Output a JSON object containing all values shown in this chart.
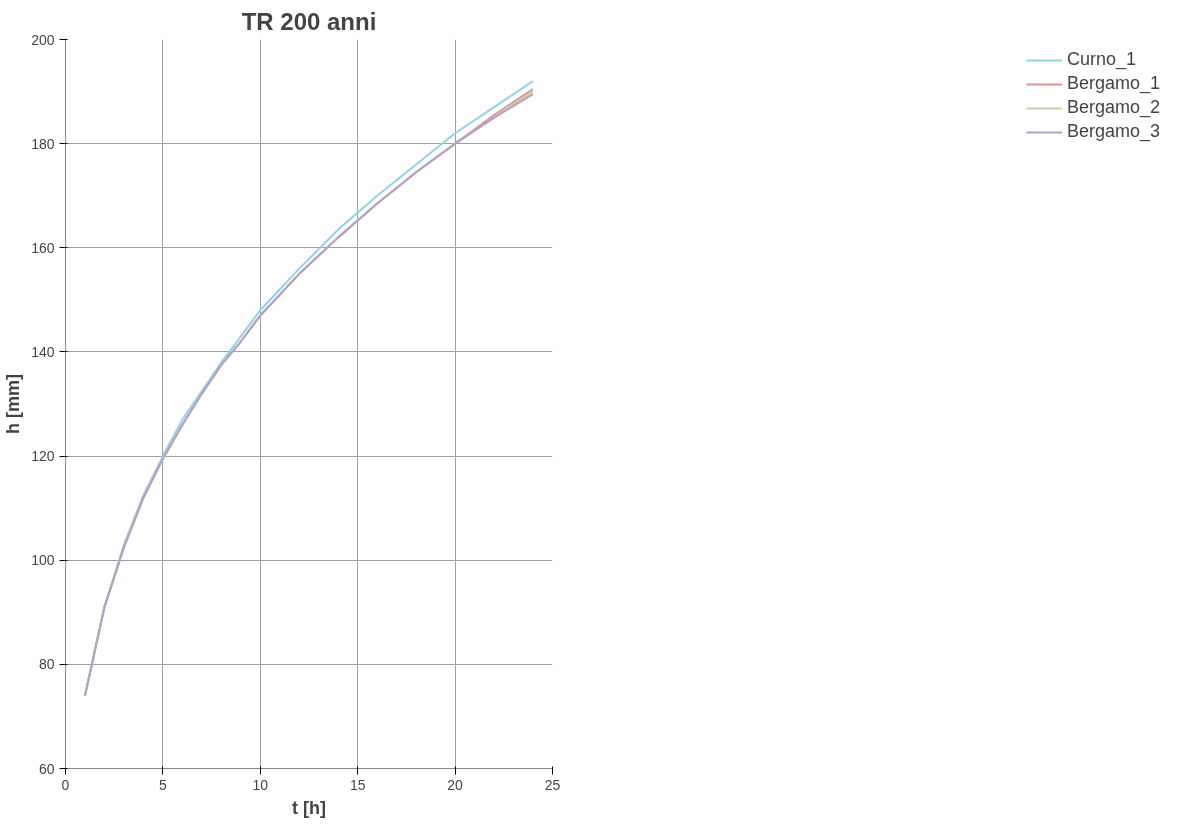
{
  "chart_data": {
    "type": "line",
    "title": "TR 200 anni",
    "xlabel": "t [h]",
    "ylabel": "h [mm]",
    "x": [
      1,
      2,
      3,
      4,
      5,
      6,
      7,
      8,
      9,
      10,
      12,
      14,
      16,
      18,
      20,
      22,
      24
    ],
    "series": [
      {
        "name": "Curno_1",
        "color": "#8fd3ea",
        "values": [
          74,
          91,
          103,
          112.5,
          120,
          127,
          132.5,
          138,
          143,
          148,
          156,
          163.5,
          170,
          176,
          182,
          187,
          192
        ]
      },
      {
        "name": "Bergamo_1",
        "color": "#d99694",
        "values": [
          74,
          91,
          102.5,
          112,
          119.5,
          126,
          132,
          137.5,
          142,
          147,
          155,
          162,
          168.5,
          174.5,
          180,
          185.5,
          190.5
        ]
      },
      {
        "name": "Bergamo_2",
        "color": "#c3d69b",
        "values": [
          74,
          91,
          102.5,
          112,
          119.5,
          126,
          132,
          137.5,
          142,
          147,
          155,
          162,
          168.5,
          174.5,
          180,
          185,
          190
        ]
      },
      {
        "name": "Bergamo_3",
        "color": "#b3a2c7",
        "values": [
          74,
          91,
          102.5,
          112,
          119.5,
          126,
          132,
          137.5,
          142,
          147,
          155,
          162,
          168.5,
          174.5,
          180,
          185,
          189.5
        ]
      }
    ],
    "xlim": [
      0,
      25
    ],
    "ylim": [
      60,
      200
    ],
    "xticks": [
      0,
      5,
      10,
      15,
      20,
      25
    ],
    "yticks": [
      60,
      80,
      100,
      120,
      140,
      160,
      180,
      200
    ],
    "grid": true,
    "legend": "right",
    "marker": "none",
    "line_style": "solid"
  }
}
